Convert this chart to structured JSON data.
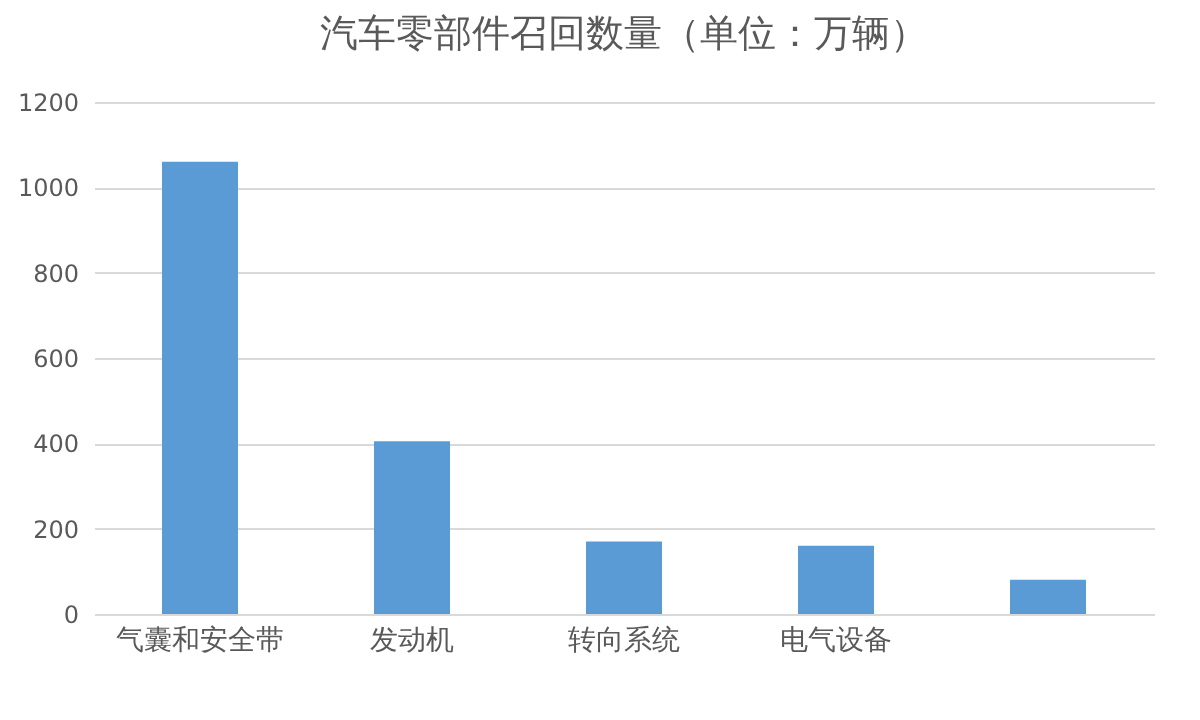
{
  "chart_data": {
    "type": "bar",
    "title": "汽车零部件召回数量（单位：万辆）",
    "categories": [
      "气囊和安全带",
      "发动机",
      "转向系统",
      "电气设备",
      null
    ],
    "values": [
      1060,
      405,
      170,
      160,
      80
    ],
    "color": "#5b9bd5",
    "ylim": [
      0,
      1200
    ],
    "yticks": [
      0,
      200,
      400,
      600,
      800,
      1000,
      1200
    ],
    "grid": true
  }
}
